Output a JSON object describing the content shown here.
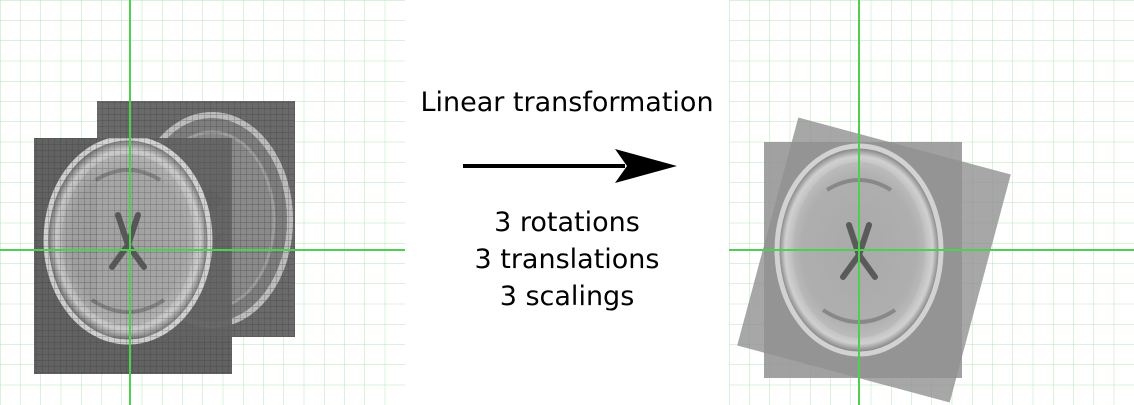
{
  "title": "Linear transformation",
  "parameters": [
    "3 rotations",
    "3 translations",
    "3 scalings"
  ],
  "colors": {
    "grid_minor": "#b5e6b5",
    "axis": "#4fcf4f",
    "arrow": "#000000"
  },
  "panels": {
    "before": {
      "description_icon": "brain-scan-icon"
    },
    "after": {
      "description_icon": "brain-scan-icon"
    }
  }
}
